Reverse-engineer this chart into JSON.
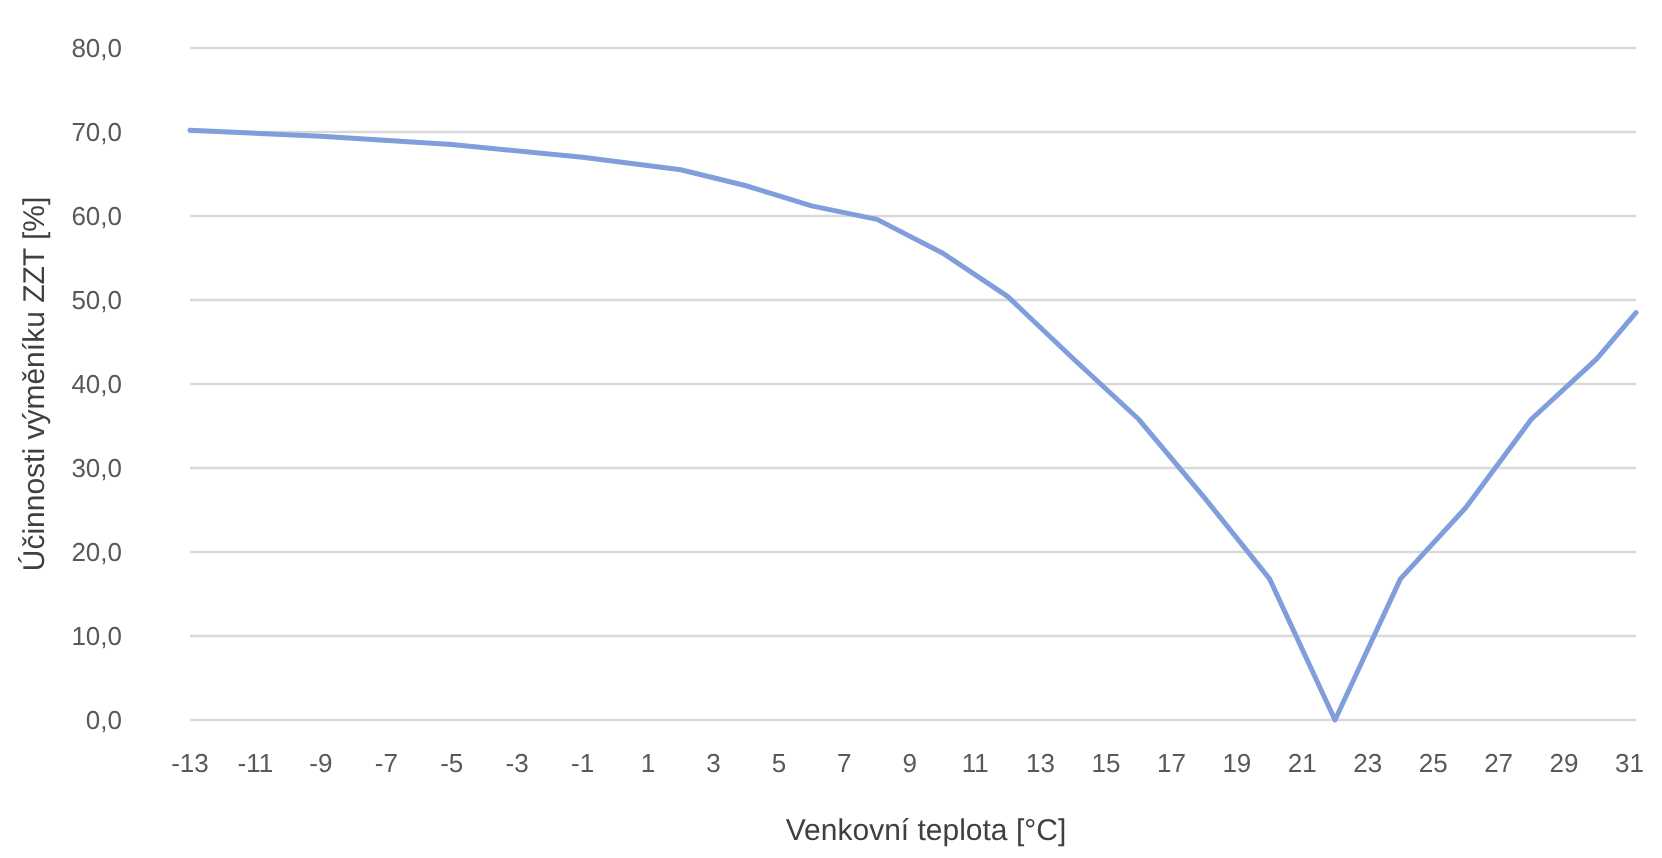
{
  "chart_data": {
    "type": "line",
    "xlabel": "Venkovní teplota [°C]",
    "ylabel": "Účinnosti výměníku ZZT [%]",
    "x": [
      -13,
      -9,
      -5,
      -1,
      2,
      4,
      6,
      8,
      10,
      12,
      14,
      16,
      18,
      20,
      22,
      24,
      26,
      28,
      30,
      31.2
    ],
    "series": [
      {
        "color": "#7f9edb",
        "values": [
          70.2,
          69.5,
          68.5,
          67,
          65.5,
          63.6,
          61.2,
          59.6,
          55.6,
          50.4,
          43,
          35.8,
          26.5,
          16.8,
          0,
          16.8,
          25.3,
          35.8,
          43,
          48.5
        ]
      }
    ],
    "xlim": [
      -13,
      31.2
    ],
    "xticks": [
      -13,
      -11,
      -9,
      -7,
      -5,
      -3,
      -1,
      1,
      3,
      5,
      7,
      9,
      11,
      13,
      15,
      17,
      19,
      21,
      23,
      25,
      27,
      29,
      31
    ],
    "ylim": [
      0,
      80
    ],
    "yticks": [
      {
        "value": 0,
        "label": "0,0"
      },
      {
        "value": 10,
        "label": "10,0"
      },
      {
        "value": 20,
        "label": "20,0"
      },
      {
        "value": 30,
        "label": "30,0"
      },
      {
        "value": 40,
        "label": "40,0"
      },
      {
        "value": 50,
        "label": "50,0"
      },
      {
        "value": 60,
        "label": "60,0"
      },
      {
        "value": 70,
        "label": "70,0"
      },
      {
        "value": 80,
        "label": "80,0"
      }
    ],
    "grid": "y",
    "marker": "none",
    "line_style": "solid"
  }
}
